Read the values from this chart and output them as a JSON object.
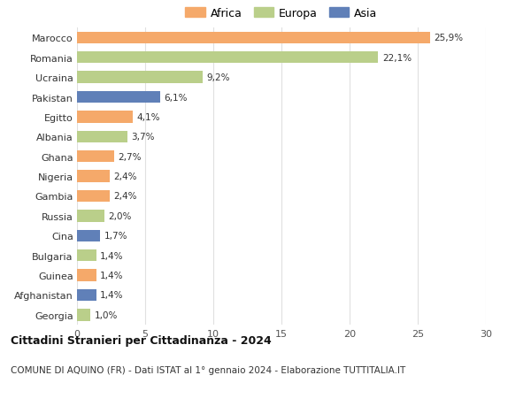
{
  "countries": [
    "Marocco",
    "Romania",
    "Ucraina",
    "Pakistan",
    "Egitto",
    "Albania",
    "Ghana",
    "Nigeria",
    "Gambia",
    "Russia",
    "Cina",
    "Bulgaria",
    "Guinea",
    "Afghanistan",
    "Georgia"
  ],
  "values": [
    25.9,
    22.1,
    9.2,
    6.1,
    4.1,
    3.7,
    2.7,
    2.4,
    2.4,
    2.0,
    1.7,
    1.4,
    1.4,
    1.4,
    1.0
  ],
  "labels": [
    "25,9%",
    "22,1%",
    "9,2%",
    "6,1%",
    "4,1%",
    "3,7%",
    "2,7%",
    "2,4%",
    "2,4%",
    "2,0%",
    "1,7%",
    "1,4%",
    "1,4%",
    "1,4%",
    "1,0%"
  ],
  "continents": [
    "Africa",
    "Europa",
    "Europa",
    "Asia",
    "Africa",
    "Europa",
    "Africa",
    "Africa",
    "Africa",
    "Europa",
    "Asia",
    "Europa",
    "Africa",
    "Asia",
    "Europa"
  ],
  "colors": {
    "Africa": "#F5A96A",
    "Europa": "#BACF8A",
    "Asia": "#6080B8"
  },
  "xlim": [
    0,
    30
  ],
  "xticks": [
    0,
    5,
    10,
    15,
    20,
    25,
    30
  ],
  "title": "Cittadini Stranieri per Cittadinanza - 2024",
  "subtitle": "COMUNE DI AQUINO (FR) - Dati ISTAT al 1° gennaio 2024 - Elaborazione TUTTITALIA.IT",
  "background_color": "#ffffff",
  "grid_color": "#e0e0e0"
}
